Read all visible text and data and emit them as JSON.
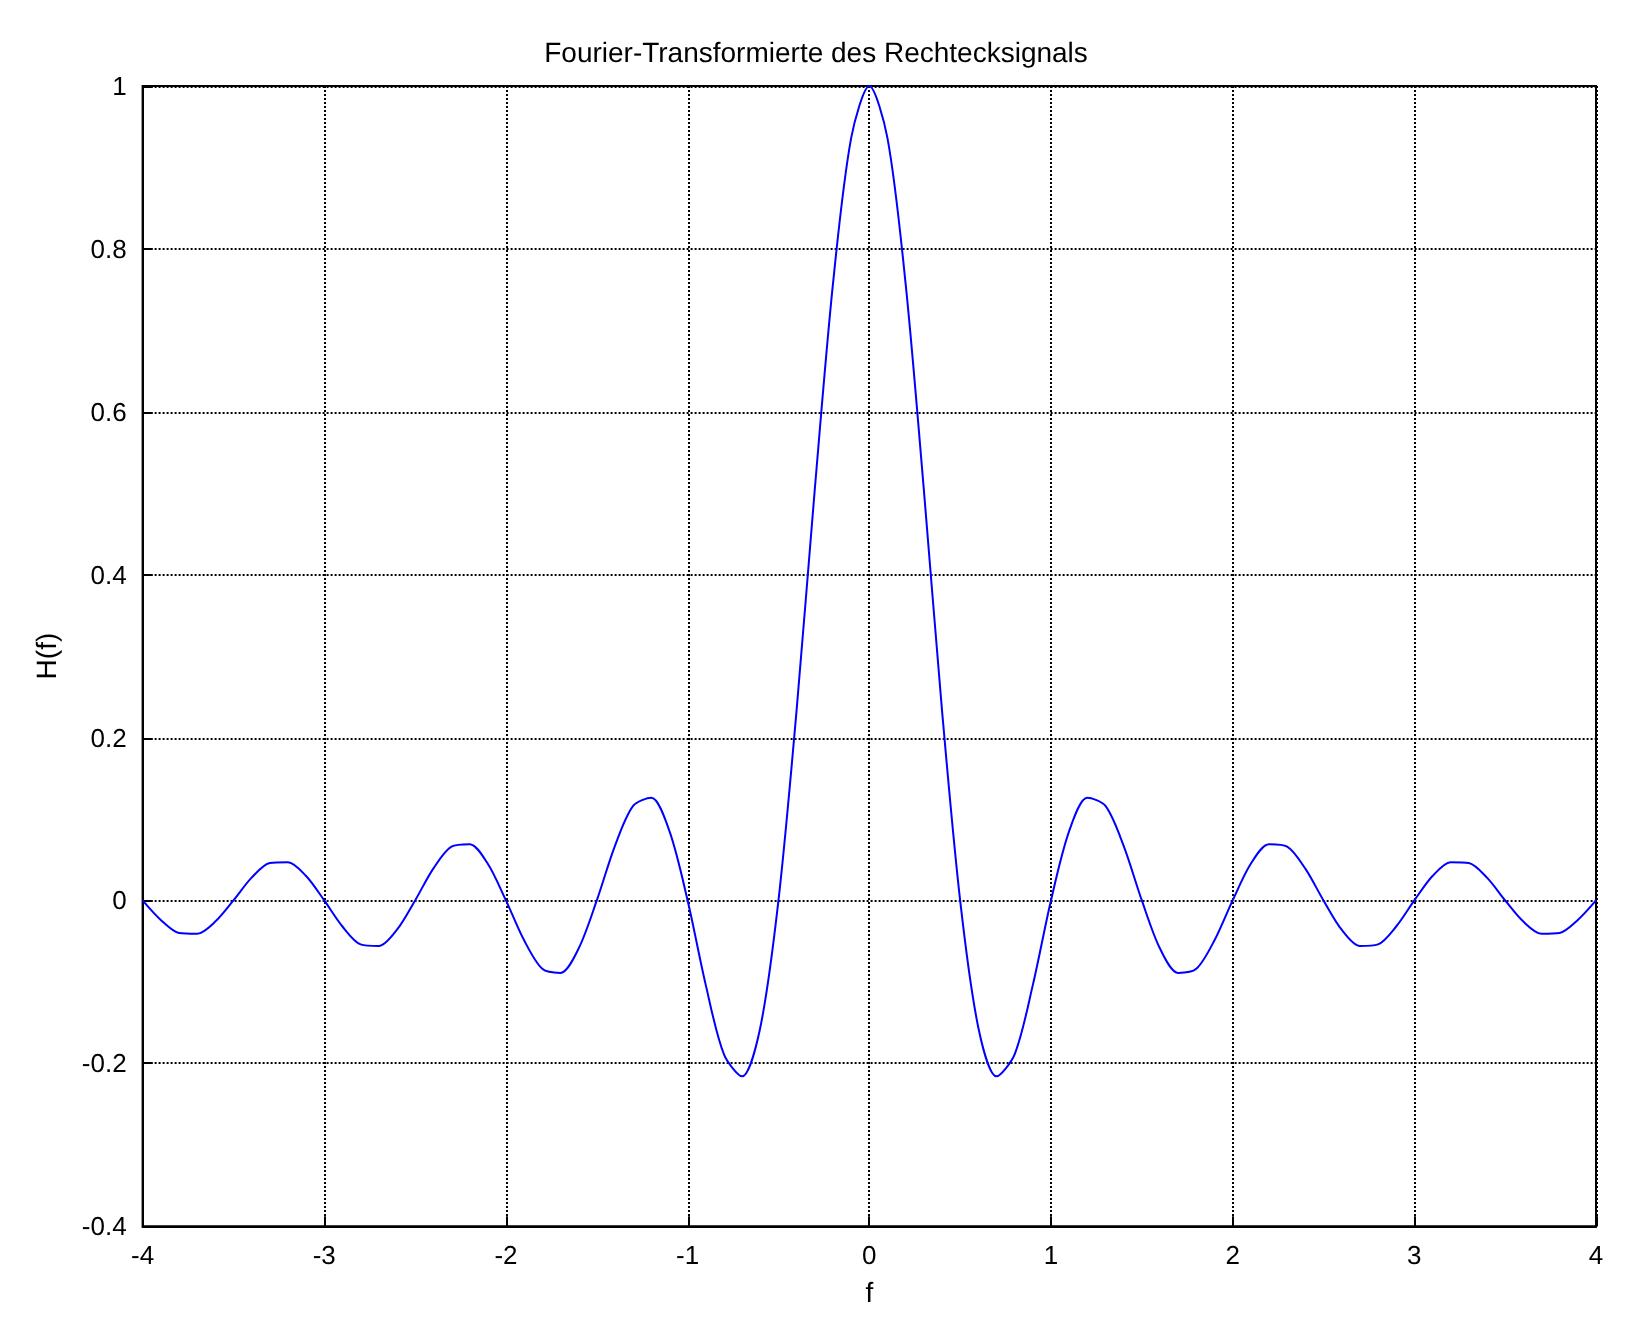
{
  "chart_data": {
    "type": "line",
    "title": "Fourier-Transformierte des Rechtecksignals",
    "xlabel": "f",
    "ylabel": "H(f)",
    "x": [
      -4,
      -3.9,
      -3.8,
      -3.7,
      -3.6,
      -3.5,
      -3.4,
      -3.3,
      -3.2,
      -3.1,
      -3,
      -2.9,
      -2.8,
      -2.7,
      -2.6,
      -2.5,
      -2.4,
      -2.3,
      -2.2,
      -2.1,
      -2,
      -1.9,
      -1.8,
      -1.7,
      -1.6,
      -1.5,
      -1.4,
      -1.3,
      -1.2,
      -1.1,
      -1,
      -0.9,
      -0.8,
      -0.7,
      -0.6,
      -0.5,
      -0.4,
      -0.3,
      -0.2,
      -0.1,
      0,
      0.1,
      0.2,
      0.3,
      0.4,
      0.5,
      0.6,
      0.7,
      0.8,
      0.9,
      1,
      1.1,
      1.2,
      1.3,
      1.4,
      1.5,
      1.6,
      1.7,
      1.8,
      1.9,
      2,
      2.1,
      2.2,
      2.3,
      2.4,
      2.5,
      2.6,
      2.7,
      2.8,
      2.9,
      3,
      3.1,
      3.2,
      3.3,
      3.4,
      3.5,
      3.6,
      3.7,
      3.8,
      3.9,
      4
    ],
    "series": [
      {
        "color": "#0000ff",
        "values": [
          0,
          -0.024,
          -0.04,
          -0.041,
          -0.026,
          0,
          0.028,
          0.046,
          0.047,
          0.03,
          0,
          -0.032,
          -0.054,
          -0.056,
          -0.036,
          0,
          0.039,
          0.066,
          0.069,
          0.045,
          0,
          -0.049,
          -0.084,
          -0.089,
          -0.059,
          0,
          0.067,
          0.116,
          0.126,
          0.085,
          0,
          -0.104,
          -0.189,
          -0.216,
          -0.156,
          0,
          0.234,
          0.505,
          0.757,
          0.936,
          1,
          0.936,
          0.757,
          0.505,
          0.234,
          0,
          -0.156,
          -0.216,
          -0.189,
          -0.104,
          0,
          0.085,
          0.126,
          0.116,
          0.067,
          0,
          -0.059,
          -0.089,
          -0.084,
          -0.049,
          0,
          0.045,
          0.069,
          0.066,
          0.039,
          0,
          -0.036,
          -0.056,
          -0.054,
          -0.032,
          0,
          0.03,
          0.047,
          0.046,
          0.028,
          0,
          -0.026,
          -0.041,
          -0.04,
          -0.024,
          0
        ]
      }
    ],
    "xlim": [
      -4,
      4
    ],
    "xticks": [
      -4,
      -3,
      -2,
      -1,
      0,
      1,
      2,
      3,
      4
    ],
    "ylim": [
      -0.4,
      1
    ],
    "yticks": [
      -0.4,
      -0.2,
      0,
      0.2,
      0.4,
      0.6,
      0.8,
      1
    ],
    "grid": true,
    "line_style": "solid"
  }
}
